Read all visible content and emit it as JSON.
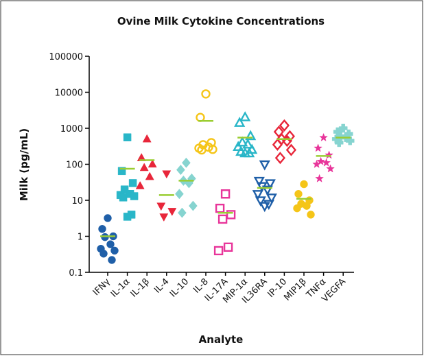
{
  "chart_data": {
    "type": "scatter",
    "title": "Ovine Milk Cytokine Concentrations",
    "x_label": "Analyte",
    "y_label": "Milk (pg/mL)",
    "log_y": true,
    "ylim": [
      0.1,
      100000
    ],
    "yticks": [
      0.1,
      1,
      10,
      100,
      1000,
      10000,
      100000
    ],
    "mean_color": "#9acd32",
    "categories": [
      "IFNγ",
      "IL-1α",
      "IL-1β",
      "IL-4",
      "IL-10",
      "IL-8",
      "IL-17A",
      "MIP-1α",
      "IL36RA",
      "IP-10",
      "MIP1β",
      "TNFα",
      "VEGFA"
    ],
    "series": [
      {
        "color": "#1f5fa8",
        "marker": "circle",
        "filled": true,
        "values": [
          3.2,
          1.6,
          1,
          0.95,
          0.6,
          0.45,
          0.4,
          0.33,
          0.22
        ],
        "mean": 1.0
      },
      {
        "color": "#29b6c8",
        "marker": "square",
        "filled": true,
        "values": [
          560,
          65,
          30,
          20,
          15,
          14,
          13,
          12,
          4,
          3.5
        ],
        "mean": 75
      },
      {
        "color": "#e8263a",
        "marker": "triangle-up",
        "filled": true,
        "values": [
          500,
          150,
          100,
          80,
          45,
          25
        ],
        "mean": 130
      },
      {
        "color": "#e8263a",
        "marker": "triangle-down",
        "filled": true,
        "values": [
          55,
          7,
          5,
          3.5
        ],
        "mean": 14
      },
      {
        "color": "#86d4d0",
        "marker": "diamond",
        "filled": true,
        "values": [
          110,
          70,
          40,
          35,
          30,
          15,
          7,
          4.5
        ],
        "mean": 35
      },
      {
        "color": "#f5c518",
        "marker": "circle",
        "filled": false,
        "values": [
          9000,
          2000,
          400,
          350,
          300,
          280,
          260,
          250
        ],
        "mean": 1600
      },
      {
        "color": "#e8359a",
        "marker": "square",
        "filled": false,
        "values": [
          15,
          6,
          4,
          3,
          0.5,
          0.4
        ],
        "mean": 4.5
      },
      {
        "color": "#29b6c8",
        "marker": "triangle-up",
        "filled": false,
        "values": [
          2000,
          1400,
          600,
          400,
          350,
          300,
          250,
          220,
          200,
          200
        ],
        "mean": 550
      },
      {
        "color": "#1f5fa8",
        "marker": "triangle-down",
        "filled": false,
        "values": [
          100,
          35,
          30,
          25,
          20,
          15,
          12,
          10,
          8,
          7
        ],
        "mean": 22
      },
      {
        "color": "#e8263a",
        "marker": "diamond",
        "filled": false,
        "values": [
          1200,
          800,
          600,
          500,
          450,
          350,
          250,
          150
        ],
        "mean": 500
      },
      {
        "color": "#f5c518",
        "marker": "circle",
        "filled": true,
        "values": [
          28,
          15,
          10,
          8,
          7,
          6,
          4
        ],
        "mean": 11
      },
      {
        "color": "#e8359a",
        "marker": "star",
        "filled": true,
        "values": [
          550,
          280,
          180,
          120,
          110,
          100,
          75,
          40
        ],
        "mean": 170
      },
      {
        "color": "#86d4d0",
        "marker": "cross",
        "filled": true,
        "values": [
          1000,
          800,
          700,
          600,
          550,
          500,
          450,
          400
        ],
        "mean": 550
      }
    ]
  }
}
